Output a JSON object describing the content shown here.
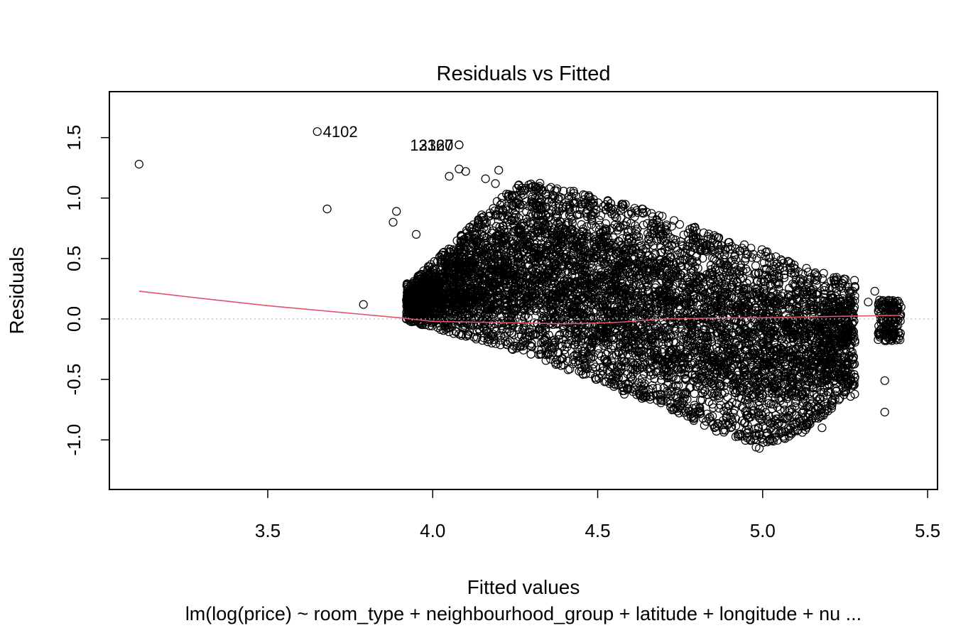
{
  "chart_data": {
    "type": "scatter",
    "title": "Residuals vs Fitted",
    "xlabel": "Fitted values",
    "ylabel": "Residuals",
    "subtitle": "lm(log(price) ~ room_type + neighbourhood_group + latitude + longitude + nu ...",
    "xlim": [
      3.02,
      5.53
    ],
    "ylim": [
      -1.41,
      1.88
    ],
    "x_ticks": [
      "3.5",
      "4.0",
      "4.5",
      "5.0",
      "5.5"
    ],
    "x_tick_values": [
      3.5,
      4.0,
      4.5,
      5.0,
      5.5
    ],
    "y_ticks": [
      "-1.0",
      "-0.5",
      "0.0",
      "0.5",
      "1.0",
      "1.5"
    ],
    "y_tick_values": [
      -1.0,
      -0.5,
      0.0,
      0.5,
      1.0,
      1.5
    ],
    "grid": false,
    "reference_line": {
      "y": 0.0,
      "style": "dotted",
      "color": "#bdbdbd"
    },
    "point_color": "#000000",
    "smooth_color": "#df536b",
    "labeled_points": [
      {
        "label": "4102",
        "x": 3.65,
        "y": 1.55
      },
      {
        "label": "13120",
        "x": 4.08,
        "y": 1.44
      },
      {
        "label": "2367",
        "x": 4.08,
        "y": 1.44
      }
    ],
    "outlier_points": [
      {
        "x": 3.11,
        "y": 1.28
      },
      {
        "x": 3.68,
        "y": 0.91
      },
      {
        "x": 3.79,
        "y": 0.12
      },
      {
        "x": 3.88,
        "y": 0.8
      },
      {
        "x": 3.89,
        "y": 0.89
      },
      {
        "x": 3.92,
        "y": 0.0
      },
      {
        "x": 3.95,
        "y": 0.7
      },
      {
        "x": 4.05,
        "y": 1.18
      },
      {
        "x": 4.08,
        "y": 1.24
      },
      {
        "x": 4.1,
        "y": 1.22
      },
      {
        "x": 4.16,
        "y": 1.16
      },
      {
        "x": 4.19,
        "y": 1.12
      },
      {
        "x": 4.2,
        "y": 1.23
      },
      {
        "x": 5.28,
        "y": 0.26
      },
      {
        "x": 5.32,
        "y": 0.14
      },
      {
        "x": 5.34,
        "y": 0.23
      },
      {
        "x": 5.37,
        "y": -0.51
      },
      {
        "x": 5.37,
        "y": -0.77
      },
      {
        "x": 5.37,
        "y": -0.1
      },
      {
        "x": 5.37,
        "y": -0.18
      },
      {
        "x": 5.22,
        "y": -0.63
      },
      {
        "x": 5.18,
        "y": -0.9
      },
      {
        "x": 4.99,
        "y": -1.07
      },
      {
        "x": 4.98,
        "y": -1.06
      },
      {
        "x": 5.04,
        "y": -0.94
      },
      {
        "x": 5.08,
        "y": -0.97
      }
    ],
    "bulk_region": {
      "description": "dense cloud of residual points",
      "x_range": [
        3.92,
        5.42
      ],
      "upper_edge": [
        [
          3.93,
          0.3
        ],
        [
          4.05,
          0.6
        ],
        [
          4.2,
          1.0
        ],
        [
          4.28,
          1.15
        ],
        [
          4.45,
          1.05
        ],
        [
          4.6,
          0.95
        ],
        [
          4.75,
          0.8
        ],
        [
          5.0,
          0.58
        ],
        [
          5.1,
          0.45
        ],
        [
          5.25,
          0.33
        ]
      ],
      "lower_edge": [
        [
          3.93,
          -0.02
        ],
        [
          4.1,
          -0.15
        ],
        [
          4.3,
          -0.3
        ],
        [
          4.5,
          -0.52
        ],
        [
          4.6,
          -0.65
        ],
        [
          4.7,
          -0.72
        ],
        [
          4.85,
          -0.92
        ],
        [
          5.0,
          -1.05
        ],
        [
          5.12,
          -0.95
        ],
        [
          5.25,
          -0.65
        ]
      ],
      "right_cluster": {
        "x_range": [
          5.35,
          5.42
        ],
        "y_range": [
          -0.18,
          0.16
        ]
      }
    },
    "smooth_line": [
      [
        3.11,
        0.23
      ],
      [
        3.3,
        0.17
      ],
      [
        3.5,
        0.11
      ],
      [
        3.7,
        0.06
      ],
      [
        3.9,
        0.01
      ],
      [
        4.0,
        -0.02
      ],
      [
        4.2,
        -0.03
      ],
      [
        4.4,
        -0.04
      ],
      [
        4.55,
        -0.03
      ],
      [
        4.7,
        0.0
      ],
      [
        4.9,
        0.01
      ],
      [
        5.0,
        0.01
      ],
      [
        5.2,
        0.02
      ],
      [
        5.4,
        0.03
      ],
      [
        5.42,
        0.03
      ]
    ]
  }
}
